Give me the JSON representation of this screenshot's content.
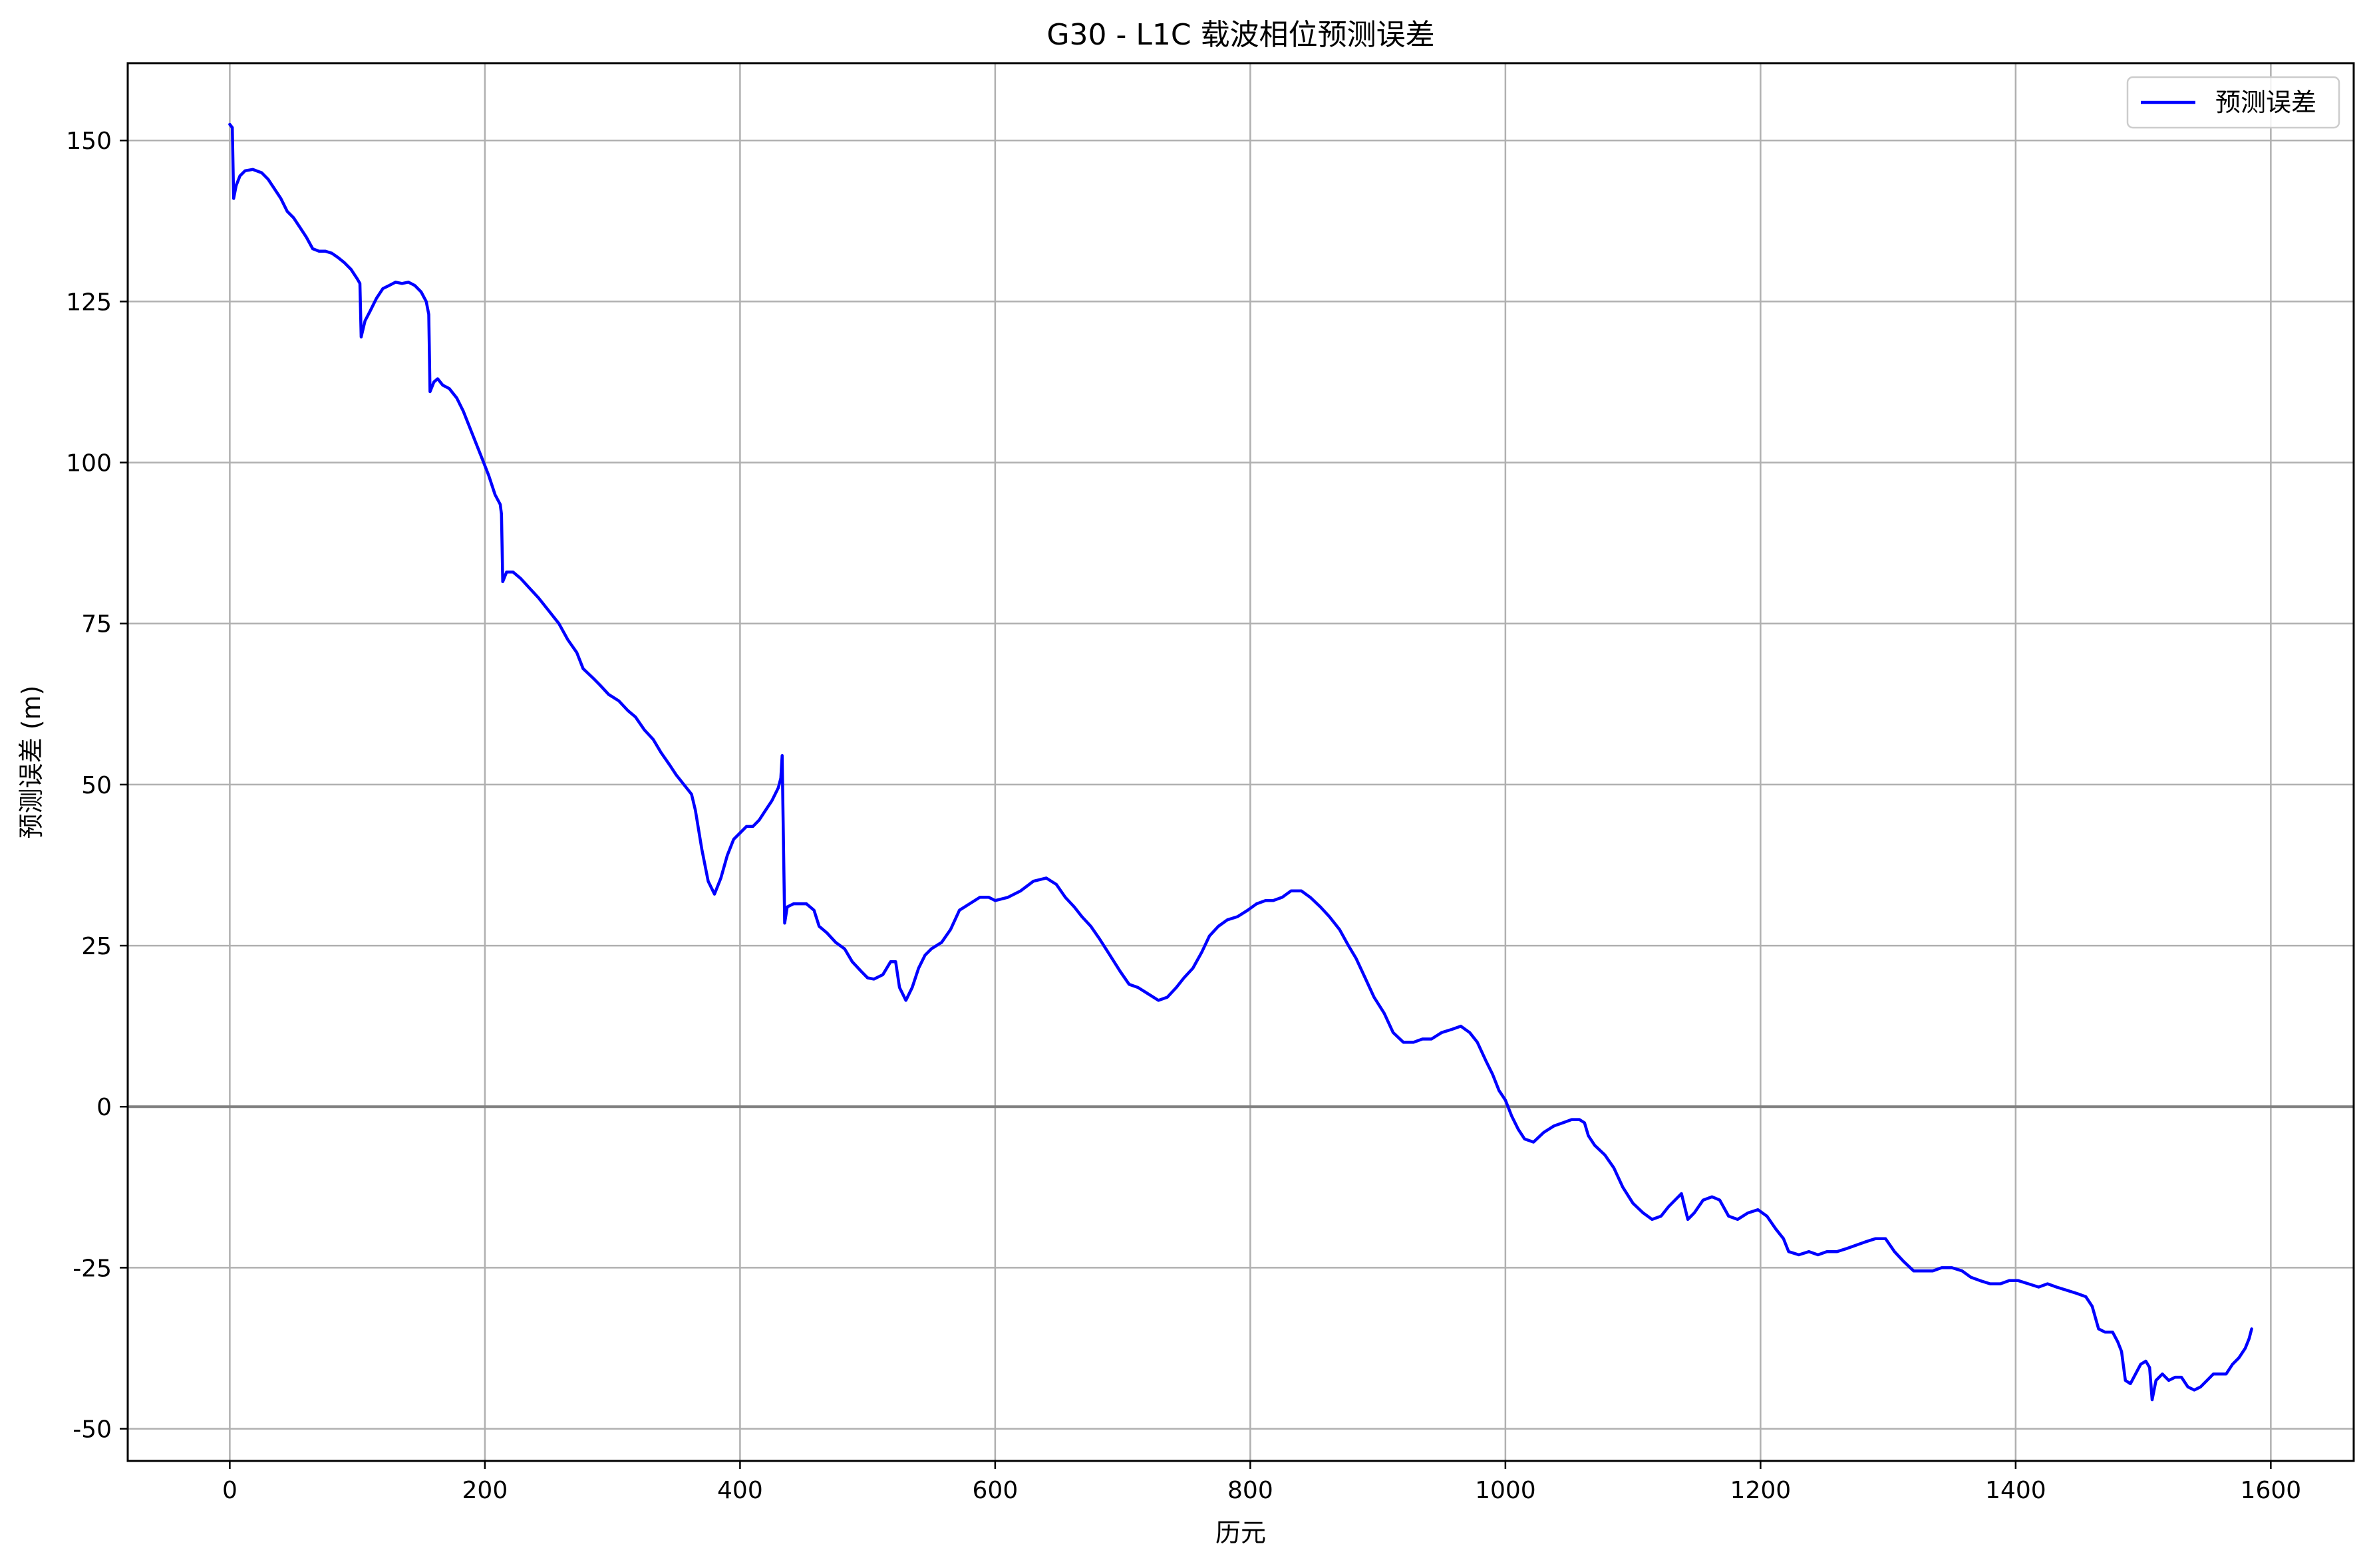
{
  "chart_data": {
    "type": "line",
    "title": "G30 - L1C 载波相位预测误差",
    "xlabel": "历元",
    "ylabel": "预测误差 (m)",
    "xlim": [
      -80,
      1665
    ],
    "ylim": [
      -55,
      162
    ],
    "xticks": [
      0,
      200,
      400,
      600,
      800,
      1000,
      1200,
      1400,
      1600
    ],
    "yticks": [
      150,
      125,
      100,
      75,
      50,
      25,
      0,
      -25,
      -50
    ],
    "xtick_labels": [
      "0",
      "200",
      "400",
      "600",
      "800",
      "1000",
      "1200",
      "1400",
      "1600"
    ],
    "ytick_labels": [
      "150",
      "125",
      "100",
      "75",
      "50",
      "25",
      "0",
      "-25",
      "-50"
    ],
    "grid": true,
    "zero_line": true,
    "legend_position": "top-right",
    "series": [
      {
        "name": "预测误差",
        "color": "#0000ff",
        "points": [
          [
            0,
            152.5
          ],
          [
            2,
            152
          ],
          [
            3,
            141
          ],
          [
            5,
            143
          ],
          [
            8,
            144.5
          ],
          [
            12,
            145.3
          ],
          [
            18,
            145.5
          ],
          [
            25,
            145
          ],
          [
            30,
            144
          ],
          [
            35,
            142.5
          ],
          [
            40,
            141
          ],
          [
            45,
            139
          ],
          [
            50,
            138
          ],
          [
            55,
            136.5
          ],
          [
            60,
            135
          ],
          [
            65,
            133.2
          ],
          [
            70,
            132.8
          ],
          [
            75,
            132.8
          ],
          [
            80,
            132.5
          ],
          [
            85,
            131.8
          ],
          [
            90,
            131
          ],
          [
            95,
            130
          ],
          [
            100,
            128.5
          ],
          [
            102,
            127.8
          ],
          [
            103,
            119.5
          ],
          [
            106,
            122
          ],
          [
            110,
            123.5
          ],
          [
            115,
            125.5
          ],
          [
            120,
            127
          ],
          [
            125,
            127.5
          ],
          [
            130,
            128
          ],
          [
            135,
            127.8
          ],
          [
            140,
            128
          ],
          [
            145,
            127.5
          ],
          [
            150,
            126.5
          ],
          [
            154,
            125
          ],
          [
            156,
            123
          ],
          [
            157,
            111
          ],
          [
            160,
            112.5
          ],
          [
            163,
            113
          ],
          [
            167,
            112
          ],
          [
            172,
            111.5
          ],
          [
            178,
            110
          ],
          [
            183,
            108
          ],
          [
            188,
            105.5
          ],
          [
            193,
            103
          ],
          [
            198,
            100.5
          ],
          [
            203,
            98
          ],
          [
            208,
            95
          ],
          [
            212,
            93.5
          ],
          [
            213,
            92
          ],
          [
            214,
            81.5
          ],
          [
            217,
            83
          ],
          [
            222,
            83
          ],
          [
            228,
            82
          ],
          [
            235,
            80.5
          ],
          [
            242,
            79
          ],
          [
            250,
            77
          ],
          [
            258,
            75
          ],
          [
            265,
            72.5
          ],
          [
            272,
            70.5
          ],
          [
            277,
            68
          ],
          [
            285,
            66.5
          ],
          [
            290,
            65.5
          ],
          [
            297,
            64
          ],
          [
            305,
            63
          ],
          [
            312,
            61.5
          ],
          [
            318,
            60.5
          ],
          [
            325,
            58.5
          ],
          [
            332,
            57
          ],
          [
            338,
            55
          ],
          [
            345,
            53
          ],
          [
            350,
            51.5
          ],
          [
            356,
            50
          ],
          [
            362,
            48.5
          ],
          [
            365,
            46
          ],
          [
            370,
            40
          ],
          [
            375,
            35
          ],
          [
            380,
            33
          ],
          [
            385,
            35.5
          ],
          [
            390,
            39
          ],
          [
            395,
            41.5
          ],
          [
            400,
            42.5
          ],
          [
            405,
            43.5
          ],
          [
            410,
            43.5
          ],
          [
            415,
            44.5
          ],
          [
            420,
            46
          ],
          [
            425,
            47.5
          ],
          [
            430,
            49.5
          ],
          [
            432,
            51
          ],
          [
            433,
            54.5
          ],
          [
            435,
            28.5
          ],
          [
            437,
            31
          ],
          [
            442,
            31.5
          ],
          [
            447,
            31.5
          ],
          [
            452,
            31.5
          ],
          [
            458,
            30.5
          ],
          [
            462,
            28
          ],
          [
            468,
            27
          ],
          [
            475,
            25.5
          ],
          [
            482,
            24.5
          ],
          [
            488,
            22.5
          ],
          [
            495,
            21
          ],
          [
            500,
            20
          ],
          [
            505,
            19.8
          ],
          [
            512,
            20.5
          ],
          [
            518,
            22.5
          ],
          [
            522,
            22.5
          ],
          [
            525,
            18.5
          ],
          [
            530,
            16.5
          ],
          [
            535,
            18.5
          ],
          [
            540,
            21.5
          ],
          [
            545,
            23.5
          ],
          [
            550,
            24.5
          ],
          [
            558,
            25.5
          ],
          [
            565,
            27.5
          ],
          [
            572,
            30.5
          ],
          [
            580,
            31.5
          ],
          [
            588,
            32.5
          ],
          [
            595,
            32.5
          ],
          [
            600,
            32
          ],
          [
            610,
            32.5
          ],
          [
            620,
            33.5
          ],
          [
            630,
            35
          ],
          [
            640,
            35.5
          ],
          [
            648,
            34.5
          ],
          [
            655,
            32.5
          ],
          [
            662,
            31
          ],
          [
            668,
            29.5
          ],
          [
            675,
            28
          ],
          [
            682,
            26
          ],
          [
            690,
            23.5
          ],
          [
            698,
            21
          ],
          [
            705,
            19
          ],
          [
            712,
            18.5
          ],
          [
            720,
            17.5
          ],
          [
            728,
            16.5
          ],
          [
            735,
            17
          ],
          [
            742,
            18.5
          ],
          [
            748,
            20
          ],
          [
            755,
            21.5
          ],
          [
            762,
            24
          ],
          [
            768,
            26.5
          ],
          [
            775,
            28
          ],
          [
            782,
            29
          ],
          [
            790,
            29.5
          ],
          [
            798,
            30.5
          ],
          [
            805,
            31.5
          ],
          [
            812,
            32
          ],
          [
            818,
            32
          ],
          [
            825,
            32.5
          ],
          [
            832,
            33.5
          ],
          [
            840,
            33.5
          ],
          [
            847,
            32.5
          ],
          [
            855,
            31
          ],
          [
            862,
            29.5
          ],
          [
            870,
            27.5
          ],
          [
            877,
            25
          ],
          [
            883,
            23
          ],
          [
            890,
            20
          ],
          [
            897,
            17
          ],
          [
            905,
            14.5
          ],
          [
            912,
            11.5
          ],
          [
            920,
            10
          ],
          [
            928,
            10
          ],
          [
            935,
            10.5
          ],
          [
            942,
            10.5
          ],
          [
            950,
            11.5
          ],
          [
            958,
            12
          ],
          [
            965,
            12.5
          ],
          [
            972,
            11.5
          ],
          [
            978,
            10
          ],
          [
            985,
            7
          ],
          [
            990,
            5
          ],
          [
            995,
            2.5
          ],
          [
            1000,
            1
          ],
          [
            1005,
            -1.5
          ],
          [
            1010,
            -3.5
          ],
          [
            1015,
            -5
          ],
          [
            1022,
            -5.5
          ],
          [
            1030,
            -4
          ],
          [
            1038,
            -3
          ],
          [
            1045,
            -2.5
          ],
          [
            1052,
            -2
          ],
          [
            1058,
            -2
          ],
          [
            1062,
            -2.5
          ],
          [
            1065,
            -4.5
          ],
          [
            1070,
            -6
          ],
          [
            1078,
            -7.5
          ],
          [
            1085,
            -9.5
          ],
          [
            1092,
            -12.5
          ],
          [
            1100,
            -15
          ],
          [
            1108,
            -16.5
          ],
          [
            1115,
            -17.5
          ],
          [
            1122,
            -17
          ],
          [
            1128,
            -15.5
          ],
          [
            1133,
            -14.5
          ],
          [
            1138,
            -13.5
          ],
          [
            1143,
            -17.5
          ],
          [
            1148,
            -16.5
          ],
          [
            1155,
            -14.5
          ],
          [
            1162,
            -14
          ],
          [
            1168,
            -14.5
          ],
          [
            1175,
            -17
          ],
          [
            1182,
            -17.5
          ],
          [
            1190,
            -16.5
          ],
          [
            1198,
            -16
          ],
          [
            1205,
            -17
          ],
          [
            1212,
            -19
          ],
          [
            1218,
            -20.5
          ],
          [
            1222,
            -22.5
          ],
          [
            1230,
            -23
          ],
          [
            1238,
            -22.5
          ],
          [
            1245,
            -23
          ],
          [
            1252,
            -22.5
          ],
          [
            1260,
            -22.5
          ],
          [
            1268,
            -22
          ],
          [
            1275,
            -21.5
          ],
          [
            1282,
            -21
          ],
          [
            1290,
            -20.5
          ],
          [
            1298,
            -20.5
          ],
          [
            1305,
            -22.5
          ],
          [
            1312,
            -24
          ],
          [
            1320,
            -25.5
          ],
          [
            1328,
            -25.5
          ],
          [
            1335,
            -25.5
          ],
          [
            1342,
            -25
          ],
          [
            1350,
            -25
          ],
          [
            1358,
            -25.5
          ],
          [
            1365,
            -26.5
          ],
          [
            1372,
            -27
          ],
          [
            1380,
            -27.5
          ],
          [
            1388,
            -27.5
          ],
          [
            1395,
            -27
          ],
          [
            1402,
            -27
          ],
          [
            1410,
            -27.5
          ],
          [
            1418,
            -28
          ],
          [
            1425,
            -27.5
          ],
          [
            1432,
            -28
          ],
          [
            1440,
            -28.5
          ],
          [
            1448,
            -29
          ],
          [
            1455,
            -29.5
          ],
          [
            1460,
            -31
          ],
          [
            1465,
            -34.5
          ],
          [
            1470,
            -35
          ],
          [
            1476,
            -35
          ],
          [
            1480,
            -36.5
          ],
          [
            1483,
            -38
          ],
          [
            1486,
            -42.5
          ],
          [
            1490,
            -43
          ],
          [
            1494,
            -41.5
          ],
          [
            1498,
            -40
          ],
          [
            1502,
            -39.5
          ],
          [
            1505,
            -40.5
          ],
          [
            1507,
            -45.5
          ],
          [
            1510,
            -42.5
          ],
          [
            1515,
            -41.5
          ],
          [
            1520,
            -42.5
          ],
          [
            1525,
            -42
          ],
          [
            1530,
            -42
          ],
          [
            1535,
            -43.5
          ],
          [
            1540,
            -44
          ],
          [
            1545,
            -43.5
          ],
          [
            1550,
            -42.5
          ],
          [
            1555,
            -41.5
          ],
          [
            1560,
            -41.5
          ],
          [
            1565,
            -41.5
          ],
          [
            1570,
            -40
          ],
          [
            1575,
            -39
          ],
          [
            1580,
            -37.5
          ],
          [
            1583,
            -36
          ],
          [
            1585,
            -34.5
          ]
        ]
      }
    ]
  }
}
